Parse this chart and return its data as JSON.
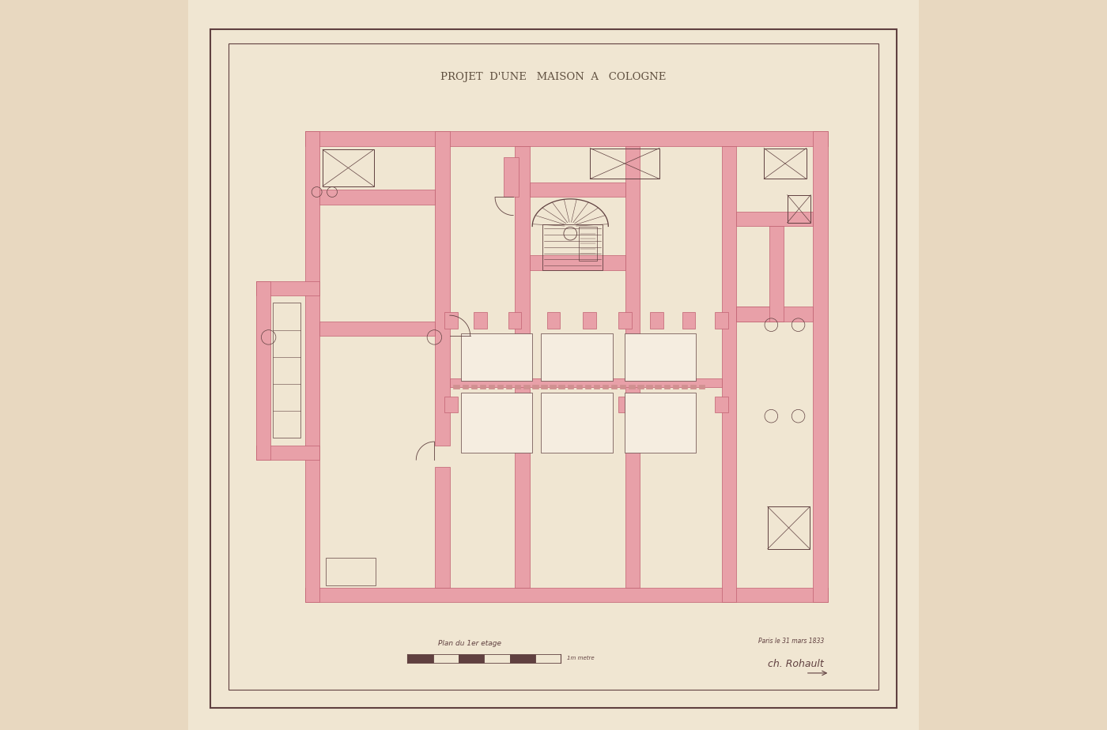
{
  "title": "PROJET  D'UNE   MAISON  A   COLOGNE",
  "subtitle": "Plan du 1er etage",
  "signature": "ch. Rohault",
  "date_text": "Paris le 31 mars 1833",
  "bg_color": "#f0e6d2",
  "page_bg": "#e8d8c0",
  "wall_color": "#e8a0a8",
  "wall_edge_color": "#c06070",
  "line_color": "#604040",
  "title_color": "#605040",
  "outer_border_color": "#604040",
  "figsize": [
    14.0,
    9.24
  ],
  "dpi": 100
}
